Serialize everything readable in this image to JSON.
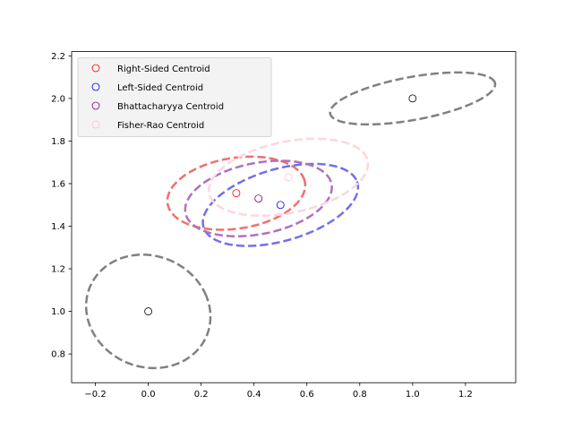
{
  "chart_data": {
    "type": "scatter",
    "title": "",
    "xlabel": "",
    "ylabel": "",
    "xlim": [
      -0.29,
      1.39
    ],
    "ylim": [
      0.665,
      2.22
    ],
    "xticks": [
      -0.2,
      0.0,
      0.2,
      0.4,
      0.6,
      0.8,
      1.0,
      1.2
    ],
    "xtick_labels": [
      "−0.2",
      "0.0",
      "0.2",
      "0.4",
      "0.6",
      "0.8",
      "1.0",
      "1.2"
    ],
    "yticks": [
      0.8,
      1.0,
      1.2,
      1.4,
      1.6,
      1.8,
      2.0,
      2.2
    ],
    "ytick_labels": [
      "0.8",
      "1.0",
      "1.2",
      "1.4",
      "1.6",
      "1.8",
      "2.0",
      "2.2"
    ],
    "grid": false,
    "legend_position": "upper-left",
    "input_points": [
      {
        "name": "input-1",
        "x": 0.0,
        "y": 1.0,
        "color": "#000000"
      },
      {
        "name": "input-2",
        "x": 1.0,
        "y": 2.0,
        "color": "#000000"
      }
    ],
    "input_ellipses": [
      {
        "name": "input-1-ellipse",
        "cx": 0.0,
        "cy": 1.0,
        "rx": 0.231,
        "ry": 0.27,
        "angle_deg": 18.4,
        "color": "#808080"
      },
      {
        "name": "input-2-ellipse",
        "cx": 1.0,
        "cy": 2.0,
        "rx": 0.32,
        "ry": 0.1,
        "angle_deg": 13.3,
        "color": "#808080"
      }
    ],
    "series": [
      {
        "name": "Right-Sided Centroid",
        "x": 0.333,
        "y": 1.555,
        "color": "#ff0000",
        "ellipse_color": "#f07070",
        "ellipse": {
          "rx": 0.265,
          "ry": 0.165,
          "angle_deg": 13.2
        }
      },
      {
        "name": "Left-Sided Centroid",
        "x": 0.5,
        "y": 1.5,
        "color": "#0000ff",
        "ellipse_color": "#7070ee",
        "ellipse": {
          "rx": 0.31,
          "ry": 0.165,
          "angle_deg": 22.3
        }
      },
      {
        "name": "Bhattacharyya Centroid",
        "x": 0.417,
        "y": 1.53,
        "color": "#800080",
        "ellipse_color": "#b070c0",
        "ellipse": {
          "rx": 0.285,
          "ry": 0.165,
          "angle_deg": 16.3
        }
      },
      {
        "name": "Fisher-Rao Centroid",
        "x": 0.53,
        "y": 1.63,
        "color": "#ffc0cb",
        "ellipse_color": "#ffd6dc",
        "ellipse": {
          "rx": 0.31,
          "ry": 0.165,
          "angle_deg": 16.3
        }
      }
    ]
  }
}
